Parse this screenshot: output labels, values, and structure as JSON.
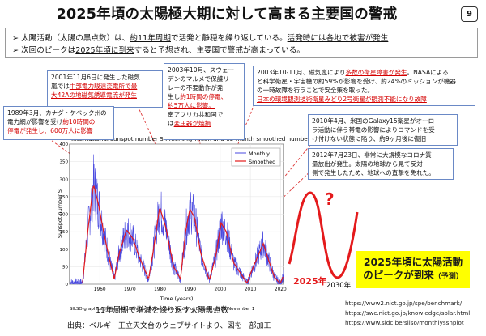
{
  "title": "2025年頃の太陽極大期に対して高まる主要国の警戒",
  "page_number": "9",
  "bullets": [
    {
      "a": "太陽活動（太陽の黒点数）は、",
      "b": "約11年周期",
      "c": "で活発と静穏を繰り返している。",
      "d": "活発時には各地で被害が発生"
    },
    {
      "a": "次回のピークは",
      "b": "2025年頃に到来",
      "c": "すると予想され、主要国で警戒が高まっている。",
      "d": ""
    }
  ],
  "callouts": [
    {
      "l1": "2001年11月6日に発生した磁気",
      "l2": "嵐では",
      "l3": "中部電力駿遠変電所で最",
      "l4": "大42Aの地磁気誘導電流が発生"
    },
    {
      "l1": "2003年10月、スウェー",
      "l2": "デンのマルメで保護リ",
      "l3": "レーの不要動作が発",
      "l4": "生し",
      "l5": "約1時間の停電、",
      "l6": "約5万人に影響。",
      "l7": "南アフリカ共和国で",
      "l8": "は",
      "l9": "変圧器が焼損"
    },
    {
      "l1": "2003年10-11月、磁気嵐により",
      "l2": "多数の衛星障害が発生",
      "l3": "。NASAによる",
      "l4": "と科学衛星・宇宙機の約59%が影響を受け、約24%のミッションが機器",
      "l5": "の一時故障を行うことで安全策を取った。",
      "l6": "日本の環境観測技術衛星みどり2号衛星が観測不能になり故障"
    },
    {
      "l1": "1989年3月、カナダ・ケベック州の",
      "l2": "電力網が影響を受け",
      "l3": "約10時間の",
      "l4": "停電が発生し、600万人に影響"
    },
    {
      "l1": "2010年4月、米国のGalaxy15衛星がオーロ",
      "l2": "ラ活動に伴う帯電の影響によりコマンドを受",
      "l3": "け付けない状態に陥り、約9ヶ月後に復旧"
    },
    {
      "l1": "2012年7月23日、非常に大規模なコロナ質",
      "l2": "量放出が発生。太陽の地球から見て反対",
      "l3": "側で発生したため、地球への直撃を免れた。"
    }
  ],
  "chart_data": {
    "type": "line",
    "title": "International sunspot number S",
    "subtitle": ": monthly mean and 13-month smoothed number",
    "ylabel": "Sunspot number S",
    "xlabel": "Time (years)",
    "xlim": [
      1950,
      2021
    ],
    "ylim": [
      0,
      400
    ],
    "yticks": [
      0,
      50,
      100,
      150,
      200,
      250,
      300,
      350,
      400
    ],
    "xticks": [
      1960,
      1970,
      1980,
      1990,
      2000,
      2010,
      2020
    ],
    "legend": [
      "Monthly",
      "Smoothed"
    ],
    "colors": {
      "monthly": "#4a4ae0",
      "smoothed": "#e41a1c"
    },
    "series": [
      {
        "name": "Smoothed",
        "x": [
          1954.3,
          1956,
          1957.9,
          1959.5,
          1961.5,
          1963.5,
          1964.8,
          1966.5,
          1968.9,
          1971,
          1973,
          1976.2,
          1977.5,
          1979.9,
          1982,
          1984.5,
          1986.8,
          1988.5,
          1989.9,
          1991.5,
          1993.5,
          1996.4,
          1998.5,
          2000.3,
          2002,
          2004.5,
          2008.9,
          2010.5,
          2012,
          2014.3,
          2016,
          2018,
          2019.9,
          2021
        ],
        "values": [
          5,
          150,
          285,
          230,
          140,
          60,
          15,
          90,
          155,
          130,
          80,
          15,
          80,
          220,
          160,
          50,
          15,
          150,
          215,
          190,
          90,
          12,
          80,
          175,
          150,
          60,
          3,
          40,
          70,
          116,
          70,
          20,
          2,
          25
        ]
      }
    ],
    "footer": "SILSO graphics (http://sidc.be/silso)  Royal Observatory of Belgium  2021 November 1"
  },
  "forecast": {
    "label_2025": "2025年",
    "label_2030": "2030年",
    "question": "?"
  },
  "banner": {
    "line1": "2025年頃に太陽活動",
    "line2": "のピークが到来",
    "line3": "（予測）"
  },
  "caption": "11年周期で増減を繰り返す太陽黒点数",
  "source": "出典：ベルギー王立天文台のウェブサイトより、図を一部加工",
  "urls": [
    "https://www2.nict.go.jp/spe/benchmark/",
    "https://swc.nict.go.jp/knowledge/solar.html",
    "https://www.sidc.be/silso/monthlyssnplot"
  ]
}
